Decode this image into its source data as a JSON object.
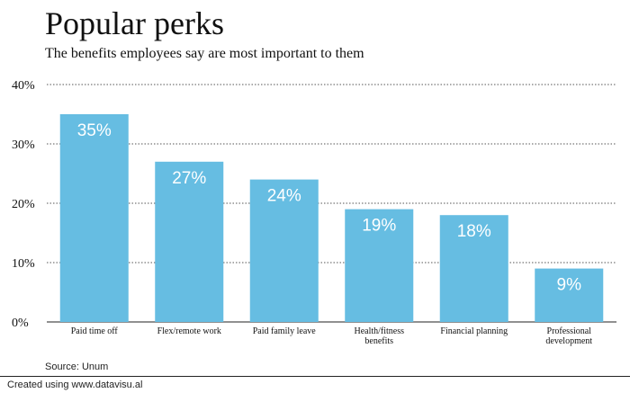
{
  "header": {
    "title": "Popular perks",
    "subtitle": "The benefits employees say are most important to them"
  },
  "source": "Source: Unum",
  "footer": "Created using www.datavisu.al",
  "colors": {
    "bar": "#66bde2",
    "bar_label": "#ffffff",
    "grid": "#555555",
    "axis": "#222222"
  },
  "chart_data": {
    "type": "bar",
    "title": "Popular perks",
    "subtitle": "The benefits employees say are most important to them",
    "categories": [
      "Paid time off",
      "Flex/remote work",
      "Paid family leave",
      "Health/fitness benefits",
      "Financial planning",
      "Professional development"
    ],
    "category_lines": [
      [
        "Paid time off"
      ],
      [
        "Flex/remote work"
      ],
      [
        "Paid family leave"
      ],
      [
        "Health/fitness",
        "benefits"
      ],
      [
        "Financial planning"
      ],
      [
        "Professional",
        "development"
      ]
    ],
    "values": [
      35,
      27,
      24,
      19,
      18,
      9
    ],
    "value_labels": [
      "35%",
      "27%",
      "24%",
      "19%",
      "18%",
      "9%"
    ],
    "ylim": [
      0,
      40
    ],
    "yticks": [
      0,
      10,
      20,
      30,
      40
    ],
    "ytick_labels": [
      "0%",
      "10%",
      "20%",
      "30%",
      "40%"
    ],
    "xlabel": "",
    "ylabel": "",
    "grid": true,
    "legend": "none"
  }
}
